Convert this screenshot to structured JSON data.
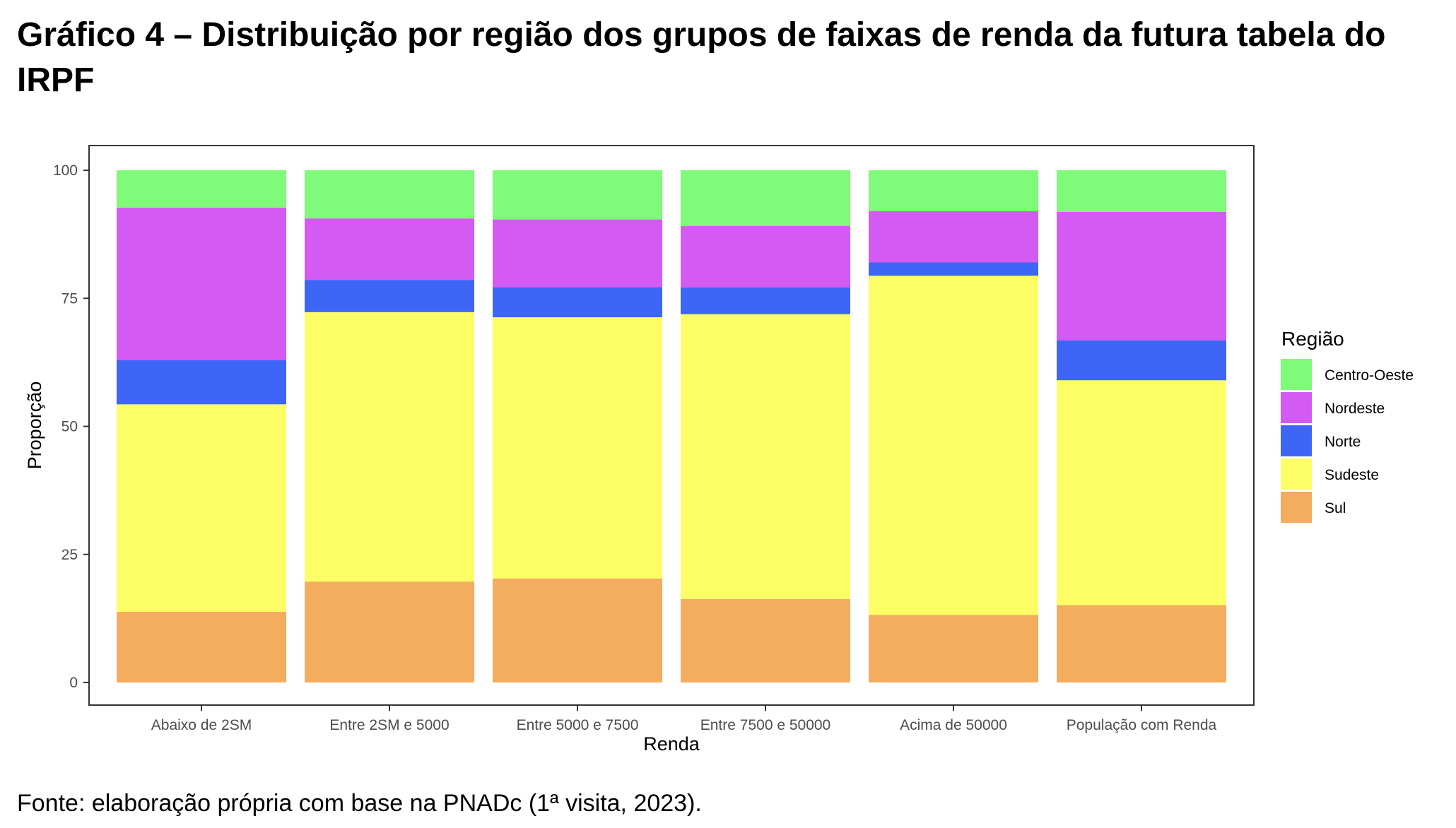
{
  "title": "Gráfico 4 – Distribuição por região dos grupos de faixas de renda da futura tabela do IRPF",
  "source": "Fonte: elaboração própria com base na PNADc (1ª visita, 2023).",
  "chart_data": {
    "type": "bar",
    "stacked": true,
    "xlabel": "Renda",
    "ylabel": "Proporção",
    "ylim": [
      0,
      100
    ],
    "yticks": [
      0,
      25,
      50,
      75,
      100
    ],
    "grid": false,
    "legend_title": "Região",
    "legend_position": "right",
    "categories": [
      "Abaixo de 2SM",
      "Entre 2SM e 5000",
      "Entre 5000 e 7500",
      "Entre 7500 e 50000",
      "Acima de 50000",
      "População com Renda"
    ],
    "series": [
      {
        "name": "Sul",
        "color": "#F4AC5F",
        "values": [
          13.8,
          19.7,
          20.3,
          16.3,
          13.2,
          15.1
        ]
      },
      {
        "name": "Sudeste",
        "color": "#FDFE66",
        "values": [
          40.5,
          52.6,
          51.0,
          55.6,
          66.2,
          43.9
        ]
      },
      {
        "name": "Norte",
        "color": "#3D65F6",
        "values": [
          8.6,
          6.3,
          5.9,
          5.2,
          2.6,
          7.8
        ]
      },
      {
        "name": "Nordeste",
        "color": "#D45AF4",
        "values": [
          29.8,
          12.0,
          13.2,
          12.0,
          10.0,
          25.1
        ]
      },
      {
        "name": "Centro-Oeste",
        "color": "#7FFA79",
        "values": [
          7.3,
          9.4,
          9.6,
          10.9,
          8.0,
          8.1
        ]
      }
    ],
    "legend_order": [
      "Centro-Oeste",
      "Nordeste",
      "Norte",
      "Sudeste",
      "Sul"
    ]
  }
}
